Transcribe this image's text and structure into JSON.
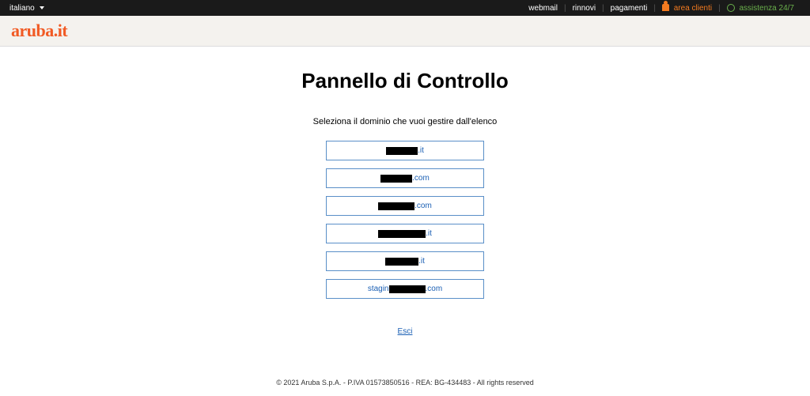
{
  "topbar": {
    "language": "italiano",
    "nav": {
      "webmail": "webmail",
      "rinnovi": "rinnovi",
      "pagamenti": "pagamenti",
      "area_clienti": "area clienti",
      "assistenza": "assistenza 24/7"
    }
  },
  "brand": {
    "logo_text": "aruba.it"
  },
  "page": {
    "title": "Pannello di Controllo",
    "subtitle": "Seleziona il dominio che vuoi gestire dall'elenco",
    "domains": [
      {
        "prefix": "",
        "redact_class": "w1",
        "tld": ".it"
      },
      {
        "prefix": "",
        "redact_class": "w1",
        "tld": ".com"
      },
      {
        "prefix": "",
        "redact_class": "w2",
        "tld": ".com"
      },
      {
        "prefix": "",
        "redact_class": "w3",
        "tld": ".it"
      },
      {
        "prefix": "",
        "redact_class": "w4",
        "tld": ".it"
      },
      {
        "prefix": "stagin",
        "redact_class": "w2",
        "tld": ".com"
      }
    ],
    "logout": "Esci"
  },
  "footer": {
    "text": "© 2021 Aruba S.p.A. - P.IVA 01573850516 - REA: BG-434483 - All rights reserved"
  },
  "colors": {
    "brand_orange": "#f15a24",
    "link_blue": "#1a5fb4",
    "border_blue": "#5a8fc8",
    "topbar_bg": "#1a1a1a",
    "assist_green": "#6ab04c",
    "user_orange": "#f47b20"
  }
}
